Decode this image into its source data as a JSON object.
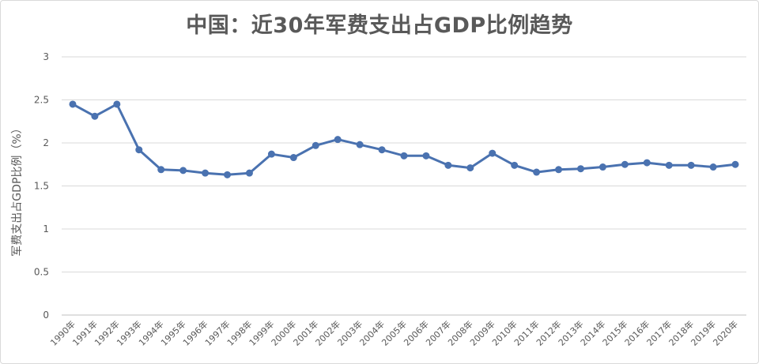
{
  "chart_data": {
    "type": "line",
    "title": "中国：近30年军费支出占GDP比例趋势",
    "xlabel": "",
    "ylabel": "军费支出占GDP比例（%）",
    "ylim": [
      0,
      3
    ],
    "yticks": [
      "0",
      "0.5",
      "1",
      "1.5",
      "2",
      "2.5",
      "3"
    ],
    "grid": true,
    "categories": [
      "1990年",
      "1991年",
      "1992年",
      "1993年",
      "1994年",
      "1995年",
      "1996年",
      "1997年",
      "1998年",
      "1999年",
      "2000年",
      "2001年",
      "2002年",
      "2003年",
      "2004年",
      "2005年",
      "2006年",
      "2007年",
      "2008年",
      "2009年",
      "2010年",
      "2011年",
      "2012年",
      "2013年",
      "2014年",
      "2015年",
      "2016年",
      "2017年",
      "2018年",
      "2019年",
      "2020年"
    ],
    "series": [
      {
        "color": "#4a72b0",
        "values": [
          2.45,
          2.31,
          2.45,
          1.92,
          1.69,
          1.68,
          1.65,
          1.63,
          1.65,
          1.87,
          1.83,
          1.97,
          2.04,
          1.98,
          1.92,
          1.85,
          1.85,
          1.74,
          1.71,
          1.88,
          1.74,
          1.66,
          1.69,
          1.7,
          1.72,
          1.75,
          1.77,
          1.74,
          1.74,
          1.72,
          1.75
        ]
      }
    ]
  }
}
